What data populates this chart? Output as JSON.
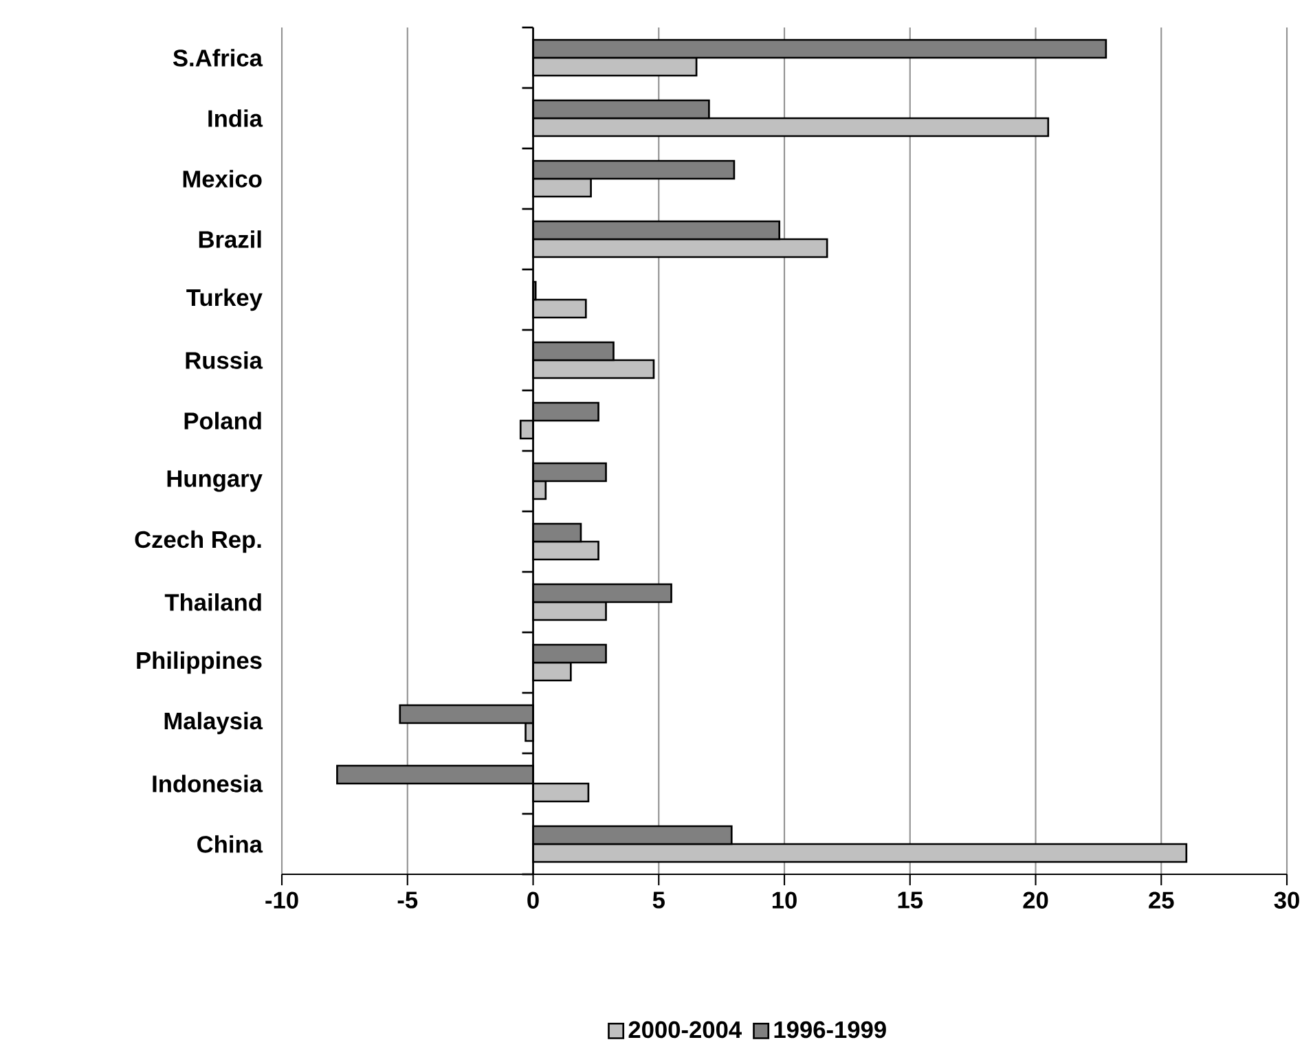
{
  "chart_data": {
    "type": "bar",
    "orientation": "horizontal",
    "categories": [
      "S.Africa",
      "India",
      "Mexico",
      "Brazil",
      "Turkey",
      "Russia",
      "Poland",
      "Hungary",
      "Czech Rep.",
      "Thailand",
      "Philippines",
      "Malaysia",
      "Indonesia",
      "China"
    ],
    "series": [
      {
        "name": "2000-2004",
        "color": "#c0c0c0",
        "values": [
          6.5,
          20.5,
          2.3,
          11.7,
          2.1,
          4.8,
          -0.5,
          0.5,
          2.6,
          2.9,
          1.5,
          -0.3,
          2.2,
          26.0
        ]
      },
      {
        "name": "1996-1999",
        "color": "#808080",
        "values": [
          22.8,
          7.0,
          8.0,
          9.8,
          0.1,
          3.2,
          2.6,
          2.9,
          1.9,
          5.5,
          2.9,
          -5.3,
          -7.8,
          7.9
        ]
      }
    ],
    "xlim": [
      -10,
      30
    ],
    "xticks": [
      -10,
      -5,
      0,
      5,
      10,
      15,
      20,
      25,
      30
    ],
    "grid": "x",
    "legend": "bottom"
  }
}
